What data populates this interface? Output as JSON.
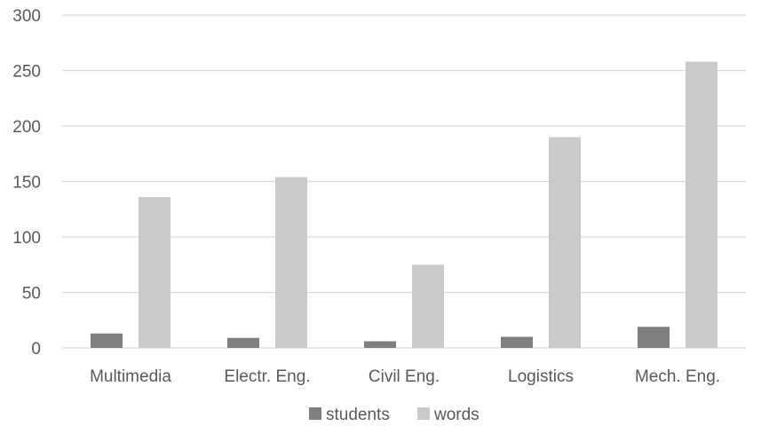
{
  "chart_data": {
    "type": "bar",
    "categories": [
      "Multimedia",
      "Electr. Eng.",
      "Civil Eng.",
      "Logistics",
      "Mech. Eng."
    ],
    "series": [
      {
        "name": "students",
        "values": [
          13,
          9,
          6,
          10,
          19
        ],
        "color": "#7f7f7f"
      },
      {
        "name": "words",
        "values": [
          136,
          154,
          75,
          190,
          258
        ],
        "color": "#cacaca"
      }
    ],
    "y_ticks": [
      "0",
      "50",
      "100",
      "150",
      "200",
      "250",
      "300"
    ],
    "ylim": [
      0,
      300
    ],
    "grid": true,
    "legend_position": "bottom"
  }
}
